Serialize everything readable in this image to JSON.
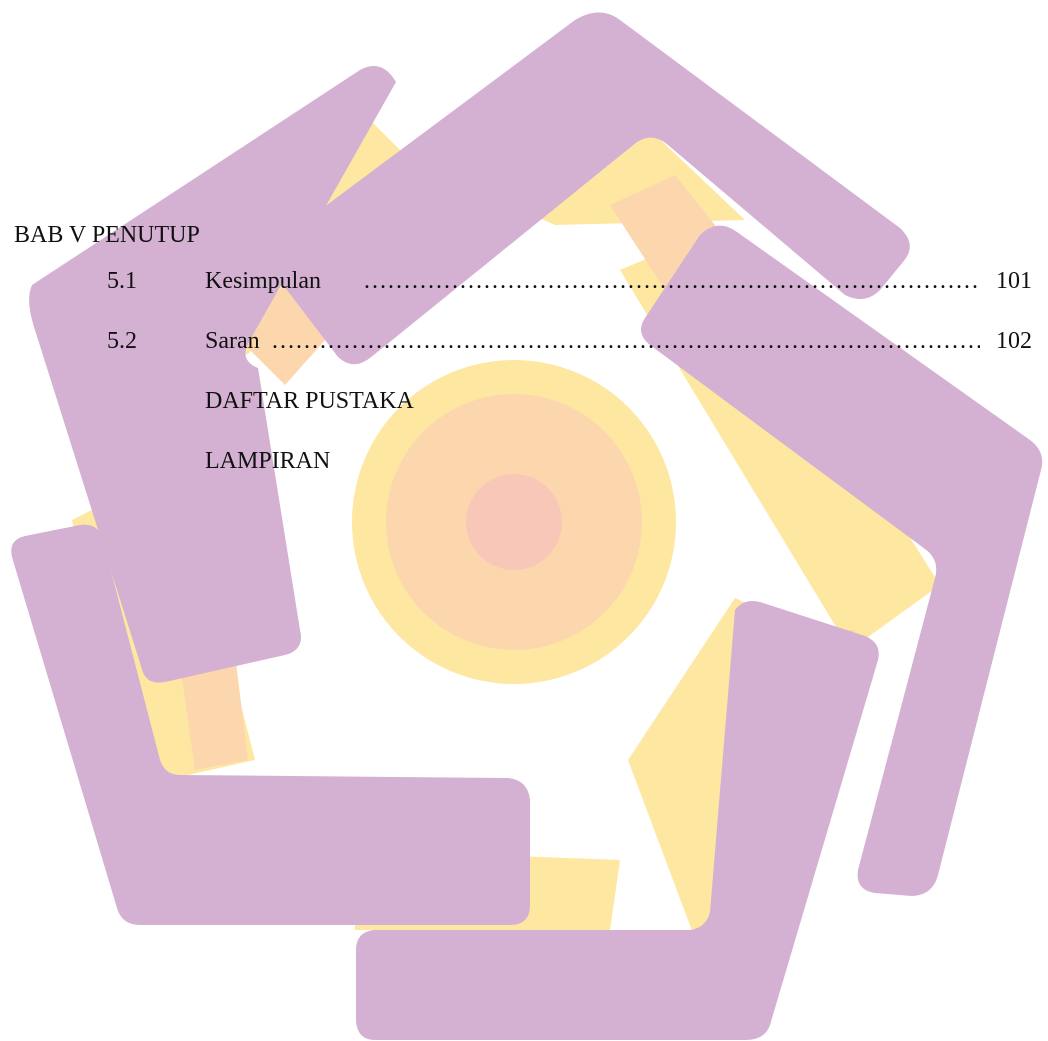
{
  "toc": {
    "chapter": "BAB V PENUTUP",
    "entries": [
      {
        "number": "5.1",
        "title": "Kesimpulan",
        "page": "101"
      },
      {
        "number": "5.2",
        "title": "Saran",
        "page": "102"
      },
      {
        "number": "",
        "title": "DAFTAR PUSTAKA"
      },
      {
        "number": "",
        "title": "LAMPIRAN"
      }
    ],
    "leader": "…………………………………………………………………………………………………………"
  },
  "watermark": {
    "purple": "#d4b0d2",
    "yellow": "#fde7a1",
    "peach": "#fcd7ad",
    "rose": "#f8c7b7"
  }
}
